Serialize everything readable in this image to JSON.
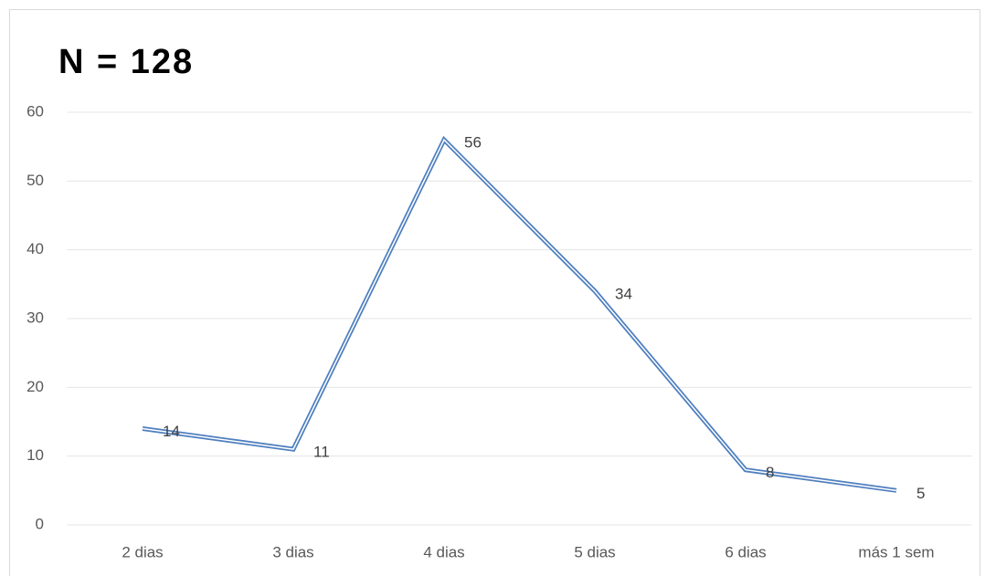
{
  "chart_data": {
    "type": "line",
    "title": "N = 128",
    "categories": [
      "2 dias",
      "3 dias",
      "4 dias",
      "5 dias",
      "6 dias",
      "más 1 sem"
    ],
    "values": [
      14,
      11,
      56,
      34,
      8,
      5
    ],
    "color": "#4f7fbf",
    "ylim": [
      0,
      60
    ],
    "yticks": [
      0,
      10,
      20,
      30,
      40,
      50,
      60
    ],
    "grid": true
  }
}
